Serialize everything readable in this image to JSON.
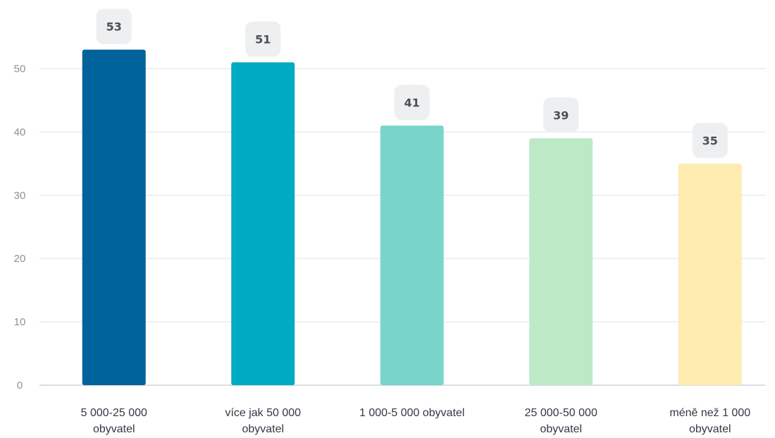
{
  "chart_data": {
    "type": "bar",
    "categories": [
      [
        "5 000-25 000",
        "obyvatel"
      ],
      [
        "více jak 50 000",
        "obyvatel"
      ],
      [
        "1 000-5 000 obyvatel"
      ],
      [
        "25 000-50 000",
        "obyvatel"
      ],
      [
        "méně než 1 000",
        "obyvatel"
      ]
    ],
    "values": [
      53,
      51,
      41,
      39,
      35
    ],
    "value_labels": [
      "53",
      "51",
      "41",
      "39",
      "35"
    ],
    "colors": [
      "#00629b",
      "#00aac3",
      "#79d5c9",
      "#bde9c7",
      "#feecb0"
    ],
    "title": "",
    "xlabel": "",
    "ylabel": "",
    "ylim": [
      0,
      57
    ],
    "yticks": [
      0,
      10,
      20,
      30,
      40,
      50
    ],
    "grid": true,
    "legend": "none"
  }
}
